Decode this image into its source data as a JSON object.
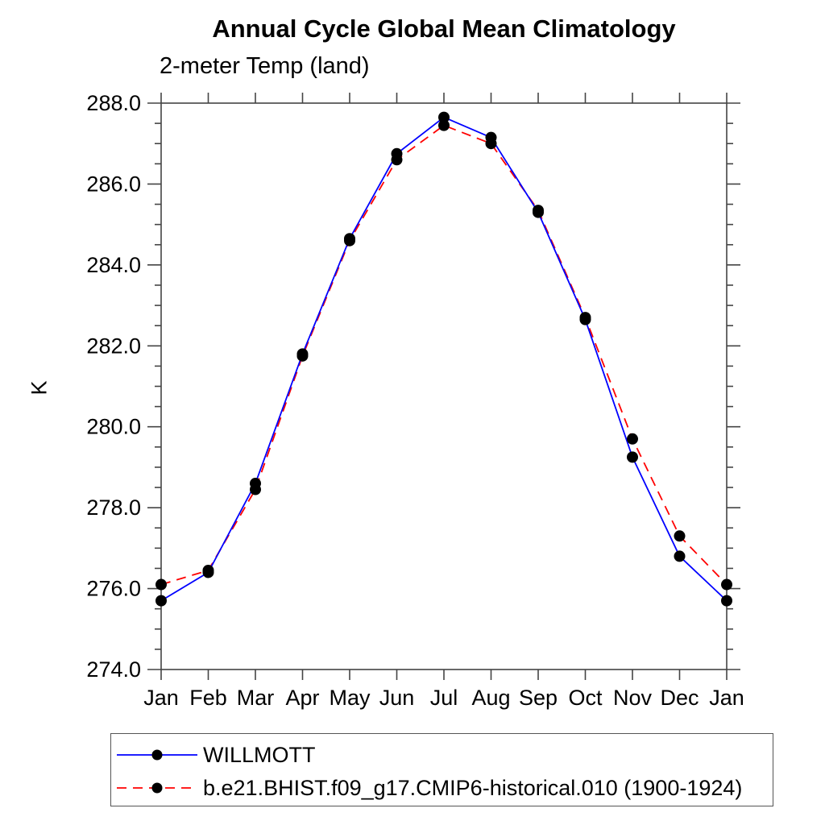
{
  "chart_data": {
    "type": "line",
    "title": "Annual Cycle Global Mean Climatology",
    "subtitle": "2-meter Temp (land)",
    "xlabel": "",
    "ylabel": "K",
    "x_categories": [
      "Jan",
      "Feb",
      "Mar",
      "Apr",
      "May",
      "Jun",
      "Jul",
      "Aug",
      "Sep",
      "Oct",
      "Nov",
      "Dec",
      "Jan"
    ],
    "ylim": [
      274.0,
      288.0
    ],
    "y_major_tick_step": 2.0,
    "y_minor_tick_step": 0.5,
    "y_tick_labels": [
      "274.0",
      "276.0",
      "278.0",
      "280.0",
      "282.0",
      "284.0",
      "286.0",
      "288.0"
    ],
    "grid": false,
    "legend_position": "below-left-outside",
    "axis_color": "#444444",
    "series": [
      {
        "name": "WILLMOTT",
        "color": "#0000ff",
        "style": "solid",
        "marker": "circle",
        "marker_color": "#000000",
        "values": [
          275.7,
          276.4,
          278.6,
          281.8,
          284.65,
          286.75,
          287.65,
          287.15,
          285.3,
          282.65,
          279.25,
          276.8,
          275.7
        ]
      },
      {
        "name": "b.e21.BHIST.f09_g17.CMIP6-historical.010 (1900-1924)",
        "color": "#ff0000",
        "style": "dashed",
        "marker": "circle",
        "marker_color": "#000000",
        "values": [
          276.1,
          276.45,
          278.45,
          281.75,
          284.6,
          286.6,
          287.45,
          287.0,
          285.35,
          282.7,
          279.7,
          277.3,
          276.1
        ]
      }
    ]
  }
}
